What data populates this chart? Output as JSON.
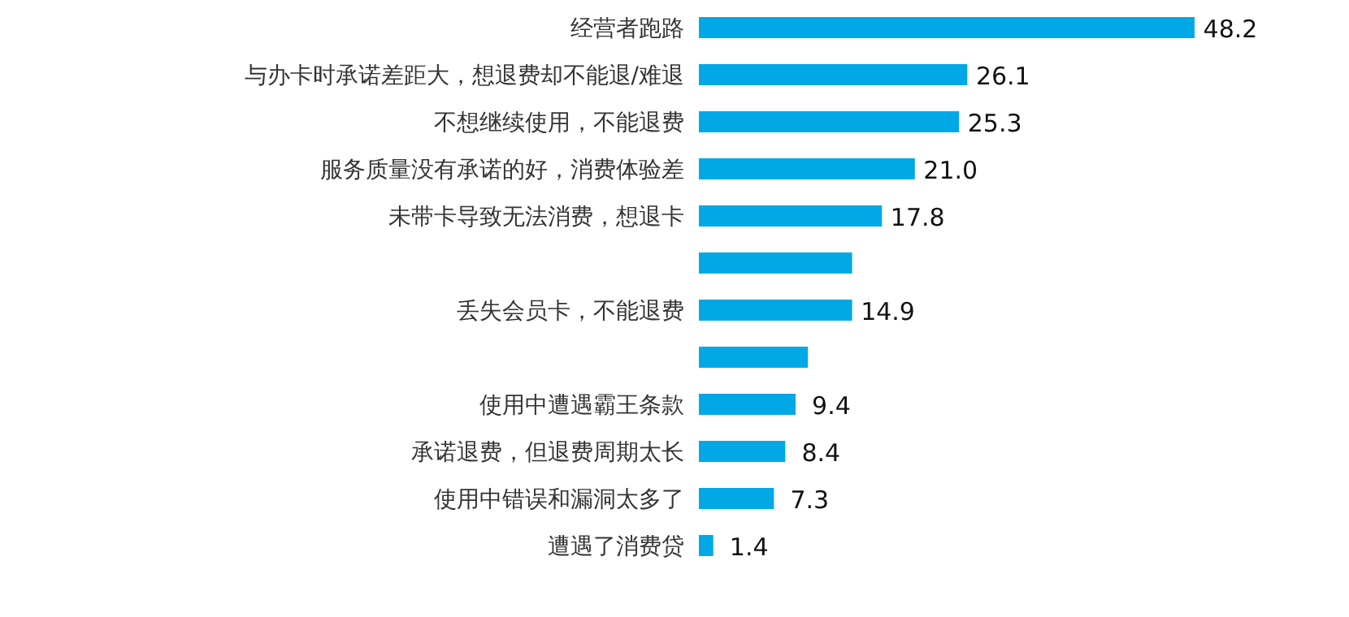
{
  "chart_data": {
    "type": "bar",
    "orientation": "horizontal",
    "categories": [
      "经营者跑路",
      "与办卡时承诺差距大，想退费却不能退/难退",
      "不想继续使用，不能退费",
      "服务质量没有承诺的好，消费体验差",
      "未带卡导致无法消费，想退卡",
      null,
      "丢失会员卡，不能退费",
      null,
      "使用中遭遇霸王条款",
      "承诺退费，但退费周期太长",
      "使用中错误和漏洞太多了",
      "遭遇了消费贷"
    ],
    "values": [
      48.2,
      26.1,
      25.3,
      21.0,
      17.8,
      14.9,
      14.9,
      10.6,
      9.4,
      8.4,
      7.3,
      1.4
    ],
    "value_labels": [
      "48.2",
      "26.1",
      "25.3",
      "21.0",
      "17.8",
      null,
      "14.9",
      null,
      "9.4",
      "8.4",
      "7.3",
      "1.4"
    ],
    "color": "#00a8e6"
  }
}
